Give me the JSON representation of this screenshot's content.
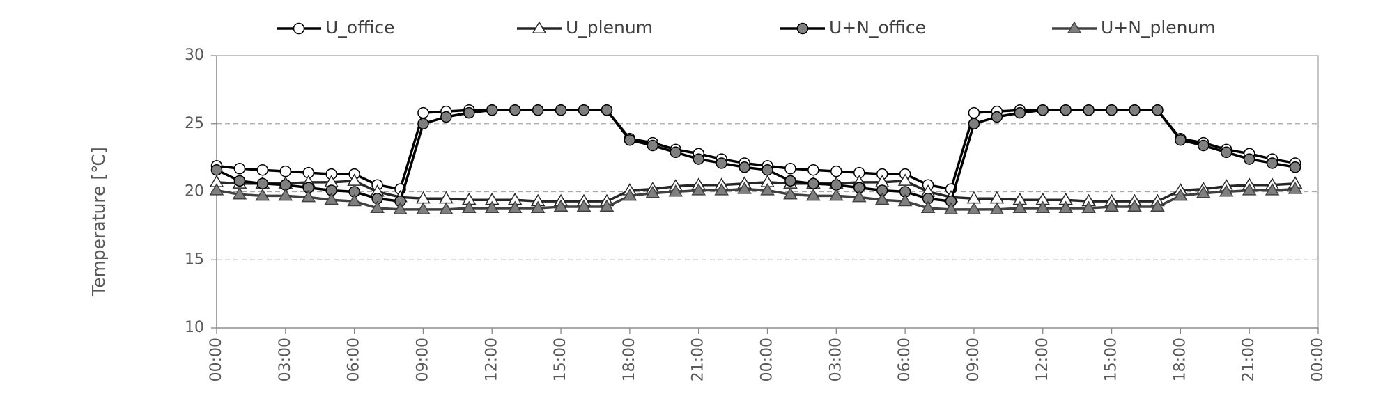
{
  "chart_data": {
    "type": "line",
    "y_label": "Temperature [℃]",
    "categories": [
      "00:00",
      null,
      null,
      "03:00",
      null,
      null,
      "06:00",
      null,
      null,
      "09:00",
      null,
      null,
      "12:00",
      null,
      null,
      "15:00",
      null,
      null,
      "18:00",
      null,
      null,
      "21:00",
      null,
      null,
      "00:00",
      null,
      null,
      "03:00",
      null,
      null,
      "06:00",
      null,
      null,
      "09:00",
      null,
      null,
      "12:00",
      null,
      null,
      "15:00",
      null,
      null,
      "18:00",
      null,
      null,
      "21:00",
      null,
      null,
      "00:00"
    ],
    "series": [
      {
        "name": "U_office",
        "color": "#000000",
        "marker": "circle",
        "marker_fill": "#ffffff",
        "values": [
          21.9,
          21.7,
          21.6,
          21.5,
          21.4,
          21.3,
          21.3,
          20.5,
          20.2,
          25.8,
          25.9,
          26.0,
          26.0,
          26.0,
          26.0,
          26.0,
          26.0,
          26.0,
          23.9,
          23.6,
          23.1,
          22.8,
          22.4,
          22.1,
          21.9,
          21.7,
          21.6,
          21.5,
          21.4,
          21.3,
          21.3,
          20.5,
          20.2,
          25.8,
          25.9,
          26.0,
          26.0,
          26.0,
          26.0,
          26.0,
          26.0,
          26.0,
          23.9,
          23.6,
          23.1,
          22.8,
          22.4,
          22.1,
          null
        ]
      },
      {
        "name": "U_plenum",
        "color": "#262626",
        "marker": "triangle",
        "marker_fill": "#ffffff",
        "values": [
          20.7,
          20.6,
          20.6,
          20.6,
          20.7,
          20.7,
          20.8,
          20.0,
          19.6,
          19.5,
          19.5,
          19.4,
          19.4,
          19.4,
          19.3,
          19.3,
          19.3,
          19.3,
          20.1,
          20.2,
          20.4,
          20.5,
          20.5,
          20.6,
          20.7,
          20.6,
          20.6,
          20.6,
          20.7,
          20.7,
          20.8,
          20.0,
          19.6,
          19.5,
          19.5,
          19.4,
          19.4,
          19.4,
          19.3,
          19.3,
          19.3,
          19.3,
          20.1,
          20.2,
          20.4,
          20.5,
          20.5,
          20.6,
          null
        ]
      },
      {
        "name": "U+N_office",
        "color": "#000000",
        "marker": "circle",
        "marker_fill": "#7f7f7f",
        "values": [
          21.6,
          20.8,
          20.6,
          20.5,
          20.3,
          20.1,
          20.0,
          19.5,
          19.3,
          25.0,
          25.5,
          25.8,
          26.0,
          26.0,
          26.0,
          26.0,
          26.0,
          26.0,
          23.8,
          23.4,
          22.9,
          22.4,
          22.1,
          21.8,
          21.6,
          20.8,
          20.6,
          20.5,
          20.3,
          20.1,
          20.0,
          19.5,
          19.3,
          25.0,
          25.5,
          25.8,
          26.0,
          26.0,
          26.0,
          26.0,
          26.0,
          26.0,
          23.8,
          23.4,
          22.9,
          22.4,
          22.1,
          21.8,
          null
        ]
      },
      {
        "name": "U+N_plenum",
        "color": "#404040",
        "marker": "triangle",
        "marker_fill": "#7f7f7f",
        "values": [
          20.1,
          19.8,
          19.7,
          19.7,
          19.6,
          19.4,
          19.3,
          18.8,
          18.7,
          18.7,
          18.7,
          18.8,
          18.8,
          18.8,
          18.8,
          18.9,
          18.9,
          18.9,
          19.7,
          19.9,
          20.0,
          20.1,
          20.1,
          20.2,
          20.1,
          19.8,
          19.7,
          19.7,
          19.6,
          19.4,
          19.3,
          18.8,
          18.7,
          18.7,
          18.7,
          18.8,
          18.8,
          18.8,
          18.8,
          18.9,
          18.9,
          18.9,
          19.7,
          19.9,
          20.0,
          20.1,
          20.1,
          20.2,
          null
        ]
      }
    ],
    "ylim": [
      10,
      30
    ],
    "yticks": [
      10,
      15,
      20,
      25,
      30
    ],
    "grid": true,
    "legend": "top"
  }
}
